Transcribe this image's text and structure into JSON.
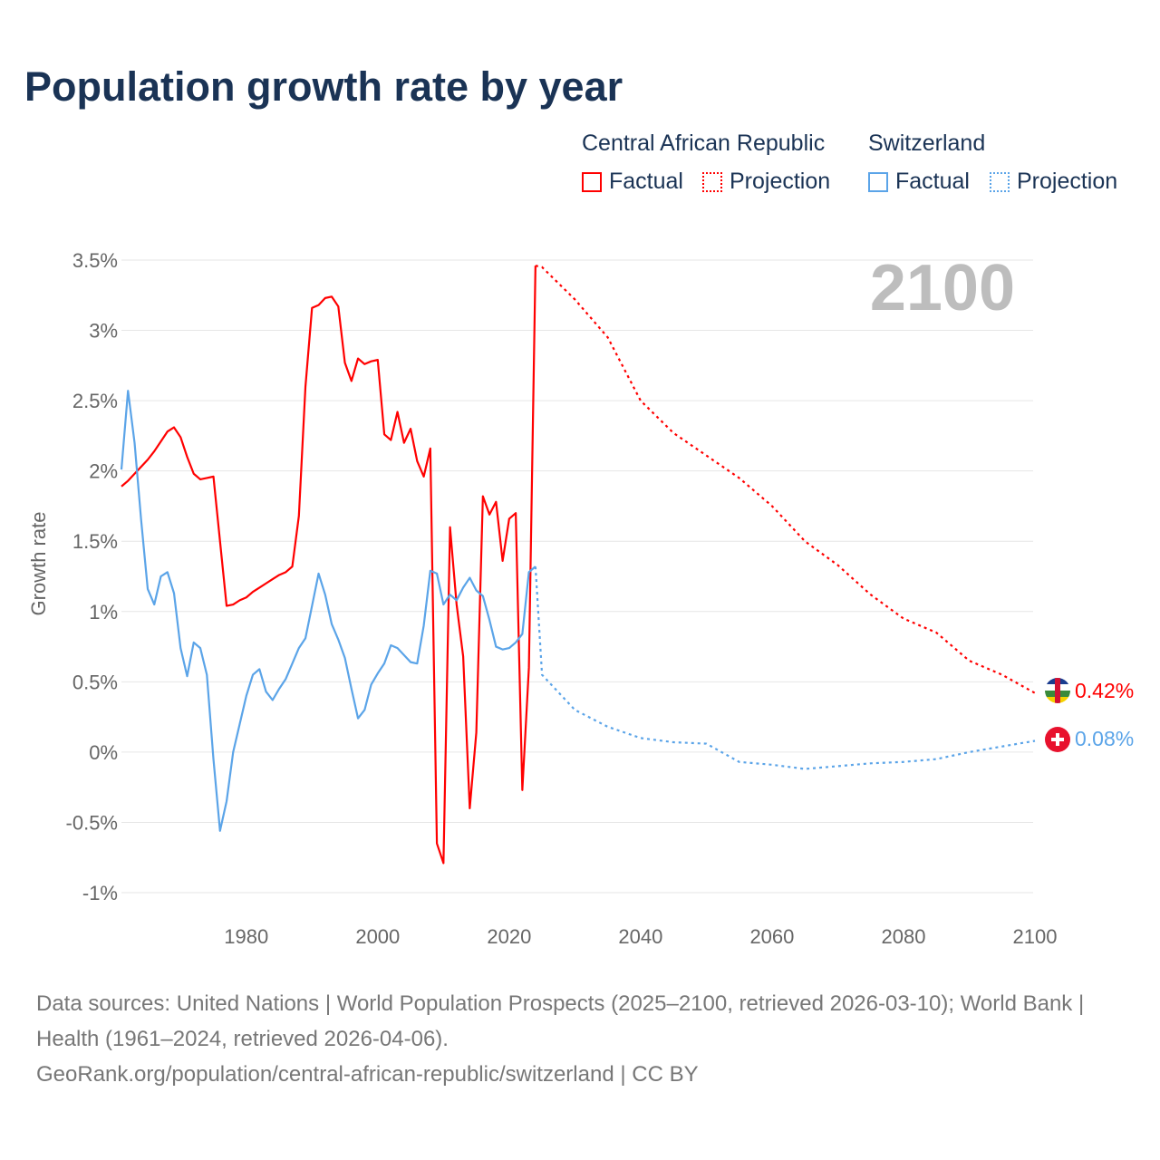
{
  "title": "Population growth rate by year",
  "legend": {
    "groups": [
      {
        "name": "Central African Republic",
        "factual": "Factual",
        "projection": "Projection",
        "color": "#ff0000"
      },
      {
        "name": "Switzerland",
        "factual": "Factual",
        "projection": "Projection",
        "color": "#5ba4e8"
      }
    ]
  },
  "year_label": "2100",
  "end_labels": {
    "car": "0.42%",
    "ch": "0.08%"
  },
  "footer": {
    "sources": "Data sources: United Nations | World Population Prospects (2025–2100, retrieved 2026-03-10); World Bank | Health (1961–2024, retrieved 2026-04-06).",
    "link": "GeoRank.org/population/central-african-republic/switzerland | CC BY"
  },
  "chart_data": {
    "type": "line",
    "title": "Population growth rate by year",
    "ylabel": "Growth rate",
    "xlabel": "",
    "xlim": [
      1961,
      2100
    ],
    "ylim": [
      -1,
      3.5
    ],
    "xticks": [
      "1980",
      "2000",
      "2020",
      "2040",
      "2060",
      "2080",
      "2100"
    ],
    "xtick_values": [
      1980,
      2000,
      2020,
      2040,
      2060,
      2080,
      2100
    ],
    "yticks": [
      "3.5%",
      "3%",
      "2.5%",
      "2%",
      "1.5%",
      "1%",
      "0.5%",
      "0%",
      "-0.5%",
      "-1%"
    ],
    "ytick_values": [
      3.5,
      3,
      2.5,
      2,
      1.5,
      1,
      0.5,
      0,
      -0.5,
      -1
    ],
    "grid": true,
    "legend_position": "top-right",
    "series": [
      {
        "name": "Central African Republic",
        "kind": "factual",
        "color": "#ff0000",
        "start_year": 1961,
        "values": [
          1.89,
          1.93,
          1.98,
          2.03,
          2.08,
          2.14,
          2.21,
          2.28,
          2.31,
          2.24,
          2.1,
          1.98,
          1.94,
          1.95,
          1.96,
          1.5,
          1.04,
          1.05,
          1.08,
          1.1,
          1.14,
          1.17,
          1.2,
          1.23,
          1.26,
          1.28,
          1.32,
          1.68,
          2.6,
          3.16,
          3.18,
          3.23,
          3.24,
          3.17,
          2.77,
          2.64,
          2.8,
          2.76,
          2.78,
          2.79,
          2.26,
          2.22,
          2.42,
          2.2,
          2.3,
          2.07,
          1.96,
          2.16,
          -0.65,
          -0.79,
          1.6,
          1.05,
          0.68,
          -0.4,
          0.14,
          1.82,
          1.69,
          1.78,
          1.36,
          1.66,
          1.7,
          -0.27,
          0.6,
          3.46
        ]
      },
      {
        "name": "Central African Republic",
        "kind": "projection",
        "color": "#ff0000",
        "x": [
          2025,
          2030,
          2035,
          2040,
          2045,
          2050,
          2055,
          2060,
          2065,
          2070,
          2075,
          2080,
          2085,
          2090,
          2095,
          2100
        ],
        "values": [
          3.45,
          3.22,
          2.95,
          2.5,
          2.27,
          2.11,
          1.95,
          1.75,
          1.5,
          1.33,
          1.12,
          0.95,
          0.85,
          0.65,
          0.55,
          0.42
        ]
      },
      {
        "name": "Switzerland",
        "kind": "factual",
        "color": "#5ba4e8",
        "start_year": 1961,
        "values": [
          2.01,
          2.57,
          2.2,
          1.65,
          1.16,
          1.05,
          1.25,
          1.28,
          1.13,
          0.74,
          0.54,
          0.78,
          0.74,
          0.55,
          -0.05,
          -0.56,
          -0.35,
          0.0,
          0.2,
          0.4,
          0.55,
          0.59,
          0.43,
          0.37,
          0.45,
          0.52,
          0.63,
          0.74,
          0.81,
          1.04,
          1.27,
          1.12,
          0.91,
          0.8,
          0.67,
          0.45,
          0.24,
          0.3,
          0.48,
          0.56,
          0.63,
          0.76,
          0.74,
          0.69,
          0.64,
          0.63,
          0.9,
          1.29,
          1.27,
          1.05,
          1.12,
          1.08,
          1.17,
          1.24,
          1.15,
          1.11,
          0.94,
          0.75,
          0.73,
          0.74,
          0.78,
          0.84,
          1.28,
          1.32
        ]
      },
      {
        "name": "Switzerland",
        "kind": "projection",
        "color": "#5ba4e8",
        "x": [
          2025,
          2030,
          2035,
          2040,
          2045,
          2050,
          2055,
          2060,
          2065,
          2070,
          2075,
          2080,
          2085,
          2090,
          2095,
          2100
        ],
        "values": [
          0.55,
          0.3,
          0.18,
          0.1,
          0.07,
          0.06,
          -0.07,
          -0.09,
          -0.12,
          -0.1,
          -0.08,
          -0.07,
          -0.05,
          0.0,
          0.04,
          0.08
        ]
      }
    ]
  }
}
